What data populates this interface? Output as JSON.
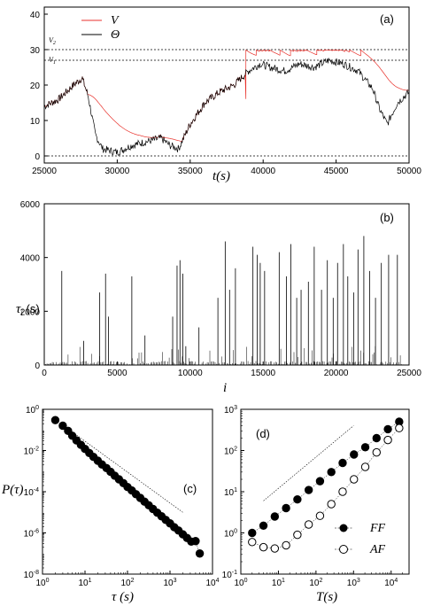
{
  "chart_data": [
    {
      "panel_label": "(a)",
      "type": "line",
      "xlabel": "t(s)",
      "xlim": [
        25000,
        50000
      ],
      "ylim": [
        -2,
        42
      ],
      "xticks": [
        "25000",
        "30000",
        "35000",
        "40000",
        "45000",
        "50000"
      ],
      "yticks": [
        "0",
        "10",
        "20",
        "30",
        "40"
      ],
      "reference_lines": [
        {
          "name": "V2",
          "y": 30
        },
        {
          "name": "V1",
          "y": 27
        },
        {
          "name": "",
          "y": 0
        }
      ],
      "series": [
        {
          "name": "V",
          "color": "#e8322c"
        },
        {
          "name": "Θ",
          "color": "#000000",
          "x": [
            25000,
            26000,
            27000,
            27600,
            28000,
            28500,
            29000,
            30000,
            31000,
            32000,
            33000,
            33600,
            34200,
            35000,
            36000,
            37000,
            38000,
            39000,
            39800,
            40500,
            41500,
            42500,
            43500,
            44500,
            45500,
            46500,
            47500,
            48000,
            48500,
            49200,
            50000
          ],
          "y": [
            14,
            16,
            20,
            22,
            17,
            6,
            2,
            1,
            3,
            4,
            5,
            3,
            2,
            9,
            15,
            18,
            20,
            24,
            26,
            25,
            24,
            26,
            25,
            27,
            26,
            24,
            19,
            13,
            9,
            15,
            18
          ]
        }
      ],
      "legend": "top-left"
    },
    {
      "panel_label": "(b)",
      "type": "bar",
      "xlabel": "i",
      "ylabel": "τ_i (s)",
      "xlim": [
        0,
        25000
      ],
      "ylim": [
        0,
        6000
      ],
      "xticks": [
        "0",
        "5000",
        "10000",
        "15000",
        "20000",
        "25000"
      ],
      "yticks": [
        "0",
        "2000",
        "4000",
        "6000"
      ],
      "x": [
        1200,
        2700,
        3800,
        4200,
        4400,
        6000,
        6900,
        8800,
        9100,
        9300,
        9500,
        9700,
        10600,
        11900,
        12400,
        12700,
        13100,
        14300,
        14600,
        14800,
        15100,
        16100,
        16600,
        16900,
        17300,
        17600,
        18100,
        18500,
        19000,
        19400,
        19800,
        20100,
        20500,
        20800,
        21200,
        21500,
        21900,
        22300,
        22700,
        23100,
        23600,
        24200
      ],
      "values": [
        3500,
        900,
        2700,
        3400,
        1800,
        3300,
        1100,
        1800,
        3700,
        3900,
        3400,
        700,
        1400,
        2500,
        4600,
        2800,
        3600,
        4400,
        4100,
        3800,
        3500,
        4200,
        3300,
        4500,
        2500,
        2800,
        3100,
        4400,
        2800,
        3900,
        2500,
        3800,
        4500,
        3300,
        2700,
        4300,
        4800,
        3500,
        2500,
        3800,
        4100,
        4100
      ]
    },
    {
      "panel_label": "(c)",
      "type": "scatter",
      "xlabel": "τ (s)",
      "ylabel": "P(τ)",
      "xscale": "log",
      "yscale": "log",
      "xlim": [
        1,
        10000
      ],
      "ylim": [
        1e-08,
        1
      ],
      "xticks": [
        "10^0",
        "10^1",
        "10^2",
        "10^3",
        "10^4"
      ],
      "yticks": [
        "10^-8",
        "10^-6",
        "10^-4",
        "10^-2",
        "10^0"
      ],
      "x": [
        2,
        3,
        4,
        5,
        6.3,
        8,
        10,
        12.6,
        15.8,
        20,
        25,
        32,
        40,
        50,
        63,
        80,
        100,
        126,
        158,
        200,
        251,
        316,
        398,
        501,
        631,
        794,
        1000,
        1259,
        1585,
        2000,
        2512,
        3162,
        4000,
        5012
      ],
      "y": [
        0.3,
        0.16,
        0.09,
        0.052,
        0.031,
        0.019,
        0.012,
        0.0076,
        0.0049,
        0.0032,
        0.0021,
        0.0014,
        0.00092,
        0.0006,
        0.0004,
        0.00026,
        0.00017,
        0.000115,
        7.6e-05,
        5e-05,
        3.3e-05,
        2.2e-05,
        1.45e-05,
        9.6e-06,
        6.4e-06,
        4.3e-06,
        2.9e-06,
        1.9e-06,
        1.3e-06,
        8.6e-07,
        5.7e-07,
        3.8e-07,
        4e-07,
        1e-07
      ],
      "guide_line": {
        "x": [
          5,
          2000
        ],
        "y": [
          0.08,
          1e-05
        ]
      }
    },
    {
      "panel_label": "(d)",
      "type": "scatter",
      "xlabel": "T(s)",
      "xscale": "log",
      "yscale": "log",
      "xlim": [
        1,
        30000
      ],
      "ylim": [
        0.1,
        1000
      ],
      "xticks": [
        "10^0",
        "10^1",
        "10^2",
        "10^3",
        "10^4"
      ],
      "yticks": [
        "10^-1",
        "10^0",
        "10^1",
        "10^2",
        "10^3"
      ],
      "series": [
        {
          "name": "FF",
          "marker": "filled",
          "x": [
            2,
            4,
            8,
            16,
            32,
            64,
            128,
            256,
            512,
            1024,
            2048,
            4096,
            8192,
            16384
          ],
          "y": [
            1.0,
            1.5,
            2.5,
            4.0,
            6.5,
            11,
            18,
            30,
            50,
            80,
            120,
            200,
            330,
            500
          ]
        },
        {
          "name": "AF",
          "marker": "open",
          "x": [
            2,
            4,
            8,
            16,
            32,
            64,
            128,
            256,
            512,
            1024,
            2048,
            4096,
            8192,
            16384
          ],
          "y": [
            0.6,
            0.45,
            0.42,
            0.5,
            0.9,
            1.6,
            2.6,
            5.0,
            10,
            20,
            40,
            90,
            180,
            350
          ]
        }
      ],
      "guide_line": {
        "x": [
          4,
          1000
        ],
        "y": [
          6,
          400
        ]
      },
      "legend": "bottom-right"
    }
  ],
  "labels": {
    "a_panel": "(a)",
    "a_xlabel": "t(s)",
    "a_leg_v": "V",
    "a_leg_theta": "Θ",
    "a_v2": "V",
    "a_v2_sub": "2",
    "a_v1": "V",
    "a_v1_sub": "1",
    "b_panel": "(b)",
    "b_xlabel": "i",
    "b_ylabel": "τ",
    "b_ylabel_sub": "i",
    "b_ylabel_unit": " (s)",
    "c_panel": "(c)",
    "c_xlabel": "τ (s)",
    "c_ylabel": "P(τ)",
    "d_panel": "(d)",
    "d_xlabel": "T(s)",
    "d_leg_ff": "FF",
    "d_leg_af": "AF"
  },
  "colors": {
    "v_line": "#e8322c",
    "theta_line": "#000000",
    "axes": "#000000"
  }
}
